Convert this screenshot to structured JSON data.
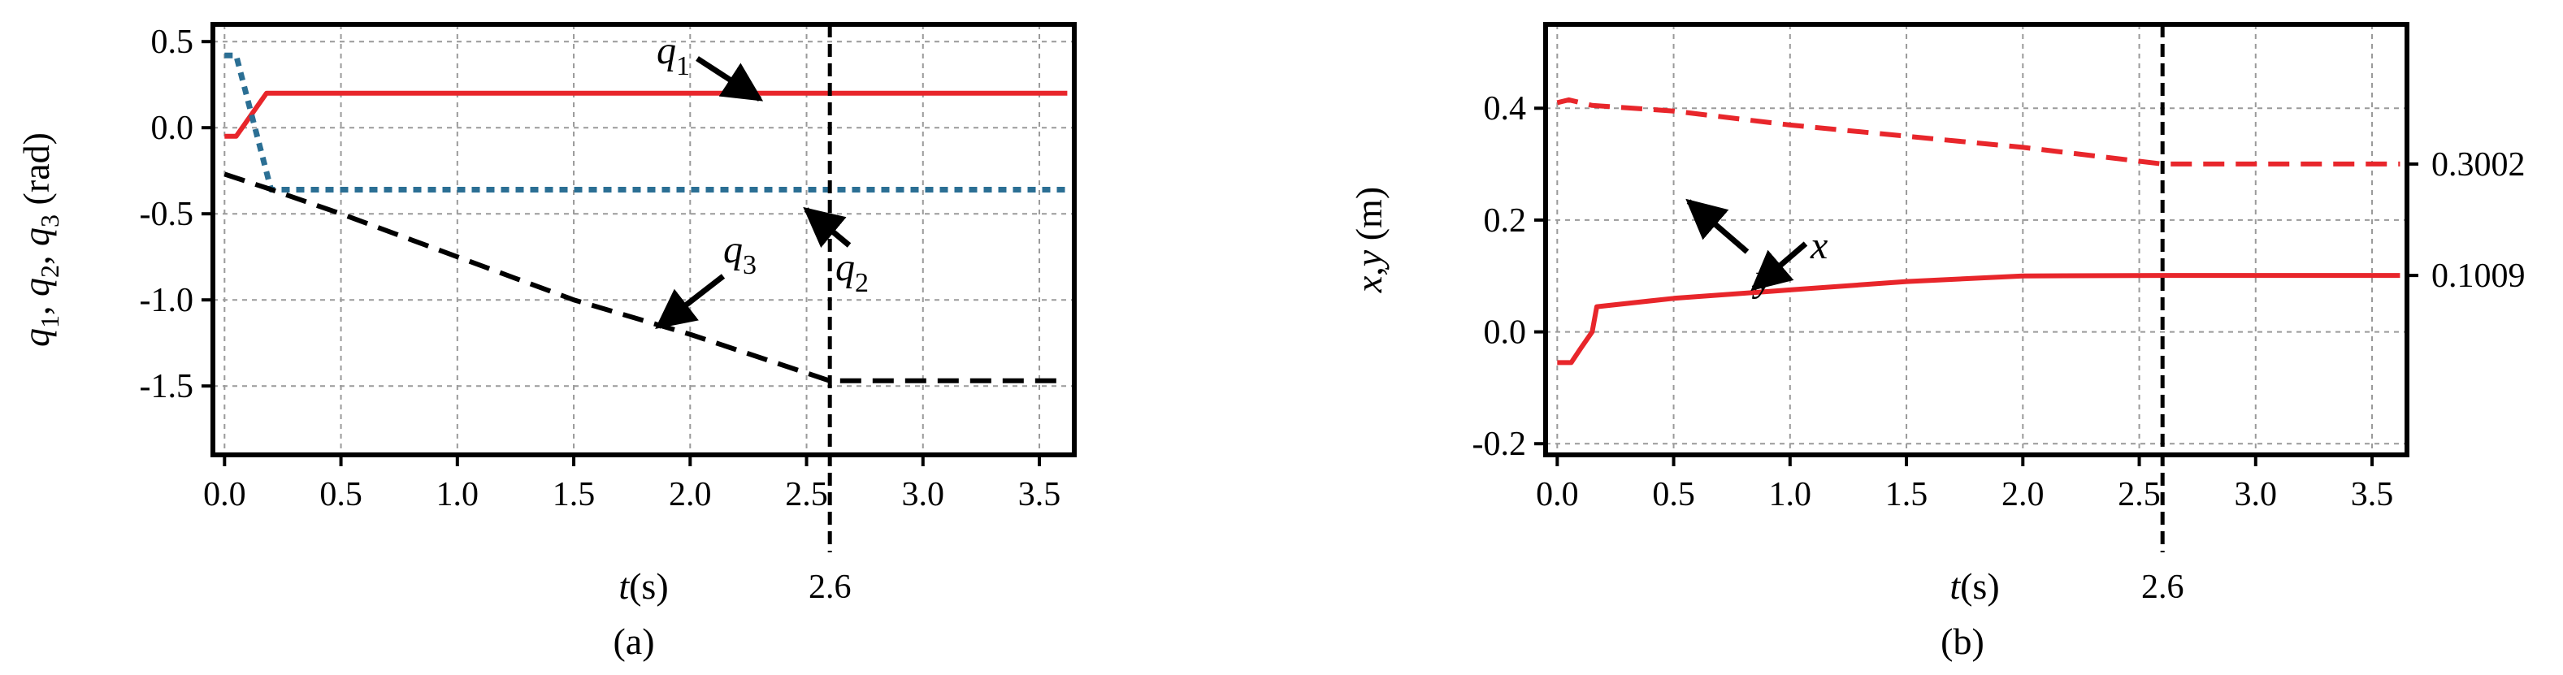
{
  "colors": {
    "red": "#e8262b",
    "blue": "#2b6f94",
    "black": "#000000",
    "grid": "#9a9a9a"
  },
  "chart_data": [
    {
      "type": "line",
      "panel_caption": "(a)",
      "xlabel_var": "t",
      "xlabel_unit": "(s)",
      "ylabel_parts": [
        "q",
        "1",
        ", ",
        "q",
        "2",
        ", ",
        "q",
        "3",
        " (rad)"
      ],
      "xlim": [
        -0.05,
        3.65
      ],
      "ylim": [
        -1.9,
        0.6
      ],
      "xticks": [
        0.0,
        0.5,
        1.0,
        1.5,
        2.0,
        2.5,
        3.0,
        3.5
      ],
      "xtick_labels": [
        "0.0",
        "0.5",
        "1.0",
        "1.5",
        "2.0",
        "2.5",
        "3.0",
        "3.5"
      ],
      "yticks": [
        0.5,
        0.0,
        -0.5,
        -1.0,
        -1.5
      ],
      "ytick_labels": [
        "0.5",
        "0.0",
        "-0.5",
        "-1.0",
        "-1.5"
      ],
      "vline": {
        "x": 2.6,
        "label": "2.6"
      },
      "grid": true,
      "series": [
        {
          "name": "q1",
          "color": "red",
          "style": "solid",
          "x": [
            0.0,
            0.05,
            0.18,
            3.62
          ],
          "y": [
            -0.05,
            -0.05,
            0.2,
            0.2
          ]
        },
        {
          "name": "q2",
          "color": "blue",
          "style": "dotted",
          "x": [
            0.0,
            0.05,
            0.2,
            2.6,
            3.62
          ],
          "y": [
            0.42,
            0.42,
            -0.36,
            -0.36,
            -0.36
          ]
        },
        {
          "name": "q3",
          "color": "black",
          "style": "dashed",
          "x": [
            0.0,
            0.18,
            0.5,
            1.0,
            1.5,
            2.0,
            2.6,
            3.62
          ],
          "y": [
            -0.27,
            -0.35,
            -0.5,
            -0.75,
            -1.0,
            -1.2,
            -1.47,
            -1.47
          ]
        }
      ],
      "annotations": [
        {
          "base": "q",
          "sub": "1"
        },
        {
          "base": "q",
          "sub": "2"
        },
        {
          "base": "q",
          "sub": "3"
        }
      ]
    },
    {
      "type": "line",
      "panel_caption": "(b)",
      "xlabel_var": "t",
      "xlabel_unit": "(s)",
      "ylabel_parts": [
        "x",
        ",",
        "y",
        " (m)"
      ],
      "xlim": [
        -0.05,
        3.65
      ],
      "ylim": [
        -0.22,
        0.55
      ],
      "xticks": [
        0.0,
        0.5,
        1.0,
        1.5,
        2.0,
        2.5,
        3.0,
        3.5
      ],
      "xtick_labels": [
        "0.0",
        "0.5",
        "1.0",
        "1.5",
        "2.0",
        "2.5",
        "3.0",
        "3.5"
      ],
      "yticks": [
        0.4,
        0.2,
        0.0,
        -0.2
      ],
      "ytick_labels": [
        "0.4",
        "0.2",
        "0.0",
        "-0.2"
      ],
      "right_labels": [
        {
          "value": 0.3002,
          "text": "0.3002"
        },
        {
          "value": 0.1009,
          "text": "0.1009"
        }
      ],
      "vline": {
        "x": 2.6,
        "label": "2.6"
      },
      "grid": true,
      "series": [
        {
          "name": "y",
          "color": "red",
          "style": "dashed",
          "x": [
            0.0,
            0.05,
            0.15,
            0.5,
            1.0,
            1.5,
            2.0,
            2.6,
            3.62
          ],
          "y": [
            0.41,
            0.415,
            0.405,
            0.395,
            0.37,
            0.35,
            0.33,
            0.3002,
            0.3002
          ]
        },
        {
          "name": "x",
          "color": "red",
          "style": "solid",
          "x": [
            0.0,
            0.06,
            0.1,
            0.15,
            0.17,
            0.5,
            1.0,
            1.5,
            2.0,
            2.6,
            3.62
          ],
          "y": [
            -0.055,
            -0.055,
            -0.03,
            0.0,
            0.045,
            0.06,
            0.075,
            0.09,
            0.1,
            0.1009,
            0.1009
          ]
        }
      ],
      "annotations": [
        {
          "base": "y",
          "sub": ""
        },
        {
          "base": "x",
          "sub": ""
        }
      ]
    }
  ]
}
